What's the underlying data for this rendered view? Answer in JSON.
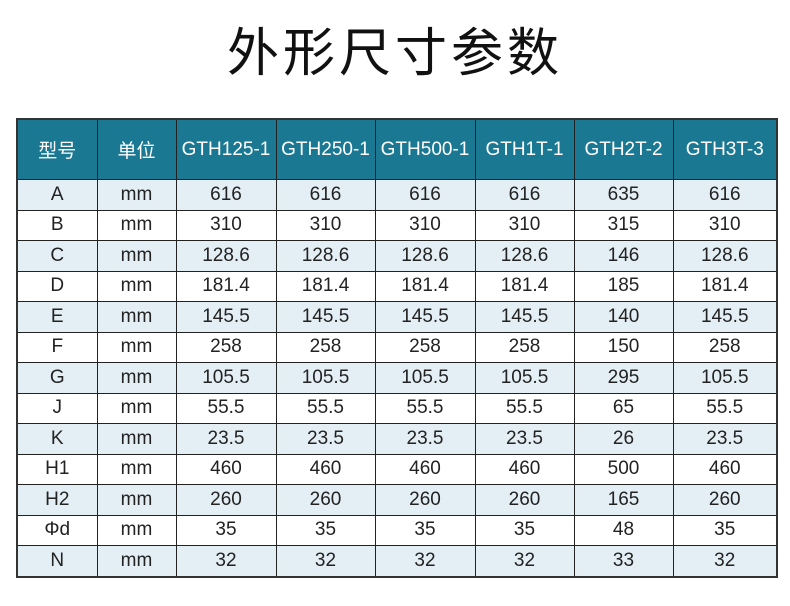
{
  "title": "外形尺寸参数",
  "colors": {
    "header_bg": "#1b7893",
    "alt_row_bg": "#e4eff5"
  },
  "table": {
    "headers": [
      "型号",
      "单位",
      "GTH125-1",
      "GTH250-1",
      "GTH500-1",
      "GTH1T-1",
      "GTH2T-2",
      "GTH3T-3"
    ],
    "rows": [
      [
        "A",
        "mm",
        "616",
        "616",
        "616",
        "616",
        "635",
        "616"
      ],
      [
        "B",
        "mm",
        "310",
        "310",
        "310",
        "310",
        "315",
        "310"
      ],
      [
        "C",
        "mm",
        "128.6",
        "128.6",
        "128.6",
        "128.6",
        "146",
        "128.6"
      ],
      [
        "D",
        "mm",
        "181.4",
        "181.4",
        "181.4",
        "181.4",
        "185",
        "181.4"
      ],
      [
        "E",
        "mm",
        "145.5",
        "145.5",
        "145.5",
        "145.5",
        "140",
        "145.5"
      ],
      [
        "F",
        "mm",
        "258",
        "258",
        "258",
        "258",
        "150",
        "258"
      ],
      [
        "G",
        "mm",
        "105.5",
        "105.5",
        "105.5",
        "105.5",
        "295",
        "105.5"
      ],
      [
        "J",
        "mm",
        "55.5",
        "55.5",
        "55.5",
        "55.5",
        "65",
        "55.5"
      ],
      [
        "K",
        "mm",
        "23.5",
        "23.5",
        "23.5",
        "23.5",
        "26",
        "23.5"
      ],
      [
        "H1",
        "mm",
        "460",
        "460",
        "460",
        "460",
        "500",
        "460"
      ],
      [
        "H2",
        "mm",
        "260",
        "260",
        "260",
        "260",
        "165",
        "260"
      ],
      [
        "Φd",
        "mm",
        "35",
        "35",
        "35",
        "35",
        "48",
        "35"
      ],
      [
        "N",
        "mm",
        "32",
        "32",
        "32",
        "32",
        "33",
        "32"
      ]
    ]
  }
}
